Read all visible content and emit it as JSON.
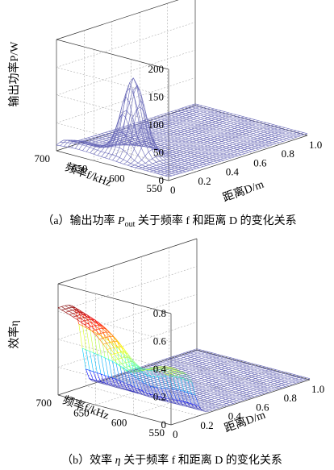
{
  "chart_data": [
    {
      "type": "surface",
      "caption": "(a) 输出功率 Pout 关于频率 f 和距离 D 的变化关系",
      "caption_parts": {
        "prefix": "（a）输出功率 ",
        "sym": "P",
        "sub": "out",
        "suffix": " 关于频率 f 和距离 D 的变化关系"
      },
      "zlabel": "输出功率P/W",
      "xlabel": "距离D/m",
      "ylabel": "频率f/kHz",
      "x_ticks": [
        "0",
        "0.2",
        "0.4",
        "0.6",
        "0.8",
        "1.0"
      ],
      "y_ticks": [
        "550",
        "600",
        "650",
        "700"
      ],
      "z_ticks": [
        "0",
        "50",
        "100",
        "150",
        "200"
      ],
      "xlim": [
        0,
        1.0
      ],
      "ylim": [
        550,
        700
      ],
      "zlim": [
        0,
        200
      ],
      "peak": {
        "x": 0.15,
        "y": 625,
        "z": 140
      },
      "surface_color": "#6a6ab8",
      "grid": true
    },
    {
      "type": "surface",
      "caption": "(b) 效率 η 关于频率 f 和距离 D 的变化关系",
      "caption_parts": {
        "prefix": "（b）效率 ",
        "sym": "η",
        "sub": "",
        "suffix": " 关于频率 f 和距离 D 的变化关系"
      },
      "zlabel": "效率η",
      "xlabel": "距离D/m",
      "ylabel": "频率f/kHz",
      "x_ticks": [
        "0",
        "0.2",
        "0.4",
        "0.6",
        "0.8",
        "1.0"
      ],
      "y_ticks": [
        "550",
        "600",
        "650",
        "700"
      ],
      "z_ticks": [
        "0",
        "0.2",
        "0.4",
        "0.6",
        "0.8"
      ],
      "xlim": [
        0,
        1.0
      ],
      "ylim": [
        550,
        700
      ],
      "zlim": [
        0,
        0.8
      ],
      "peak": {
        "x": 0.0,
        "y": 700,
        "z": 0.62
      },
      "surface_colormap": "jet",
      "grid": true
    }
  ]
}
